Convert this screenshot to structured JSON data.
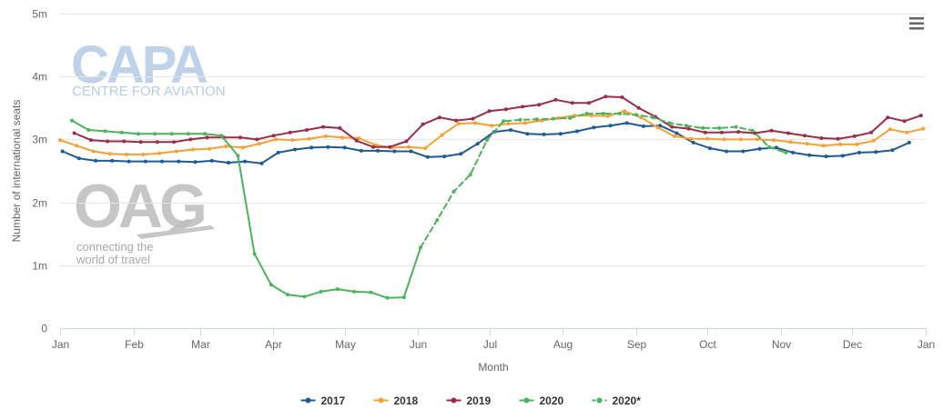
{
  "watermarks": {
    "capa_main": "CAPA",
    "capa_sub": "CENTRE FOR AVIATION",
    "oag_main": "OAG",
    "oag_tag1": "connecting the",
    "oag_tag2": "world of travel"
  },
  "icons": {
    "menu": "hamburger-menu-icon"
  },
  "chart_data": {
    "type": "line",
    "title": "",
    "xlabel": "Month",
    "ylabel": "Number of international seats",
    "y_ticks": [
      {
        "value": 0,
        "label": "0"
      },
      {
        "value": 1000000,
        "label": "1m"
      },
      {
        "value": 2000000,
        "label": "2m"
      },
      {
        "value": 3000000,
        "label": "3m"
      },
      {
        "value": 4000000,
        "label": "4m"
      },
      {
        "value": 5000000,
        "label": "5m"
      }
    ],
    "x_ticks": [
      {
        "value": 1,
        "label": "Jan"
      },
      {
        "value": 32,
        "label": "Feb"
      },
      {
        "value": 60,
        "label": "Mar"
      },
      {
        "value": 91,
        "label": "Apr"
      },
      {
        "value": 121,
        "label": "May"
      },
      {
        "value": 152,
        "label": "Jun"
      },
      {
        "value": 182,
        "label": "Jul"
      },
      {
        "value": 213,
        "label": "Aug"
      },
      {
        "value": 244,
        "label": "Sep"
      },
      {
        "value": 274,
        "label": "Oct"
      },
      {
        "value": 305,
        "label": "Nov"
      },
      {
        "value": 335,
        "label": "Dec"
      },
      {
        "value": 366,
        "label": "Jan"
      }
    ],
    "xlim": [
      1,
      366
    ],
    "ylim": [
      0,
      5000000
    ],
    "grid": "horizontal",
    "legend_position": "bottom-center",
    "series": [
      {
        "name": "2017",
        "color": "#1f5a96",
        "dashed": false,
        "x": [
          2,
          9,
          16,
          23,
          30,
          37,
          44,
          51,
          58,
          65,
          72,
          79,
          86,
          93,
          100,
          107,
          114,
          121,
          128,
          135,
          142,
          149,
          156,
          163,
          170,
          177,
          184,
          191,
          198,
          205,
          212,
          219,
          226,
          233,
          240,
          247,
          254,
          261,
          268,
          275,
          282,
          289,
          296,
          303,
          310,
          317,
          324,
          331,
          338,
          345,
          352,
          359
        ],
        "y": [
          2810000,
          2700000,
          2660000,
          2660000,
          2650000,
          2650000,
          2650000,
          2650000,
          2640000,
          2660000,
          2630000,
          2650000,
          2620000,
          2790000,
          2840000,
          2870000,
          2880000,
          2870000,
          2820000,
          2820000,
          2810000,
          2810000,
          2720000,
          2730000,
          2770000,
          2930000,
          3120000,
          3150000,
          3090000,
          3080000,
          3090000,
          3130000,
          3190000,
          3220000,
          3260000,
          3210000,
          3220000,
          3100000,
          2950000,
          2860000,
          2810000,
          2810000,
          2850000,
          2870000,
          2790000,
          2750000,
          2730000,
          2740000,
          2790000,
          2800000,
          2830000,
          2950000
        ]
      },
      {
        "name": "2018",
        "color": "#f7a035",
        "dashed": false,
        "x": [
          1,
          8,
          15,
          22,
          29,
          36,
          43,
          50,
          57,
          64,
          71,
          78,
          85,
          92,
          99,
          106,
          113,
          120,
          127,
          134,
          141,
          148,
          155,
          162,
          169,
          176,
          183,
          190,
          197,
          204,
          211,
          218,
          225,
          232,
          239,
          246,
          253,
          260,
          267,
          274,
          281,
          288,
          295,
          302,
          309,
          316,
          323,
          330,
          337,
          344,
          351,
          358,
          365
        ],
        "y": [
          2990000,
          2900000,
          2810000,
          2770000,
          2760000,
          2760000,
          2780000,
          2810000,
          2840000,
          2850000,
          2890000,
          2870000,
          2930000,
          3000000,
          2990000,
          3010000,
          3050000,
          3030000,
          3020000,
          2910000,
          2870000,
          2880000,
          2860000,
          3070000,
          3250000,
          3260000,
          3220000,
          3250000,
          3260000,
          3300000,
          3340000,
          3380000,
          3380000,
          3370000,
          3450000,
          3350000,
          3190000,
          3050000,
          3010000,
          3010000,
          3000000,
          3000000,
          3000000,
          2990000,
          2960000,
          2930000,
          2900000,
          2920000,
          2920000,
          2980000,
          3160000,
          3110000,
          3170000
        ]
      },
      {
        "name": "2019",
        "color": "#9b2d48",
        "dashed": false,
        "x": [
          7,
          14,
          21,
          28,
          35,
          42,
          49,
          56,
          63,
          70,
          77,
          84,
          91,
          98,
          105,
          112,
          119,
          126,
          133,
          140,
          147,
          154,
          161,
          168,
          175,
          182,
          189,
          196,
          203,
          210,
          217,
          224,
          231,
          238,
          245,
          252,
          259,
          266,
          273,
          280,
          287,
          294,
          301,
          308,
          315,
          322,
          329,
          336,
          343,
          350,
          357,
          364
        ],
        "y": [
          3100000,
          2990000,
          2970000,
          2970000,
          2960000,
          2960000,
          2960000,
          3000000,
          3030000,
          3030000,
          3030000,
          3000000,
          3060000,
          3110000,
          3150000,
          3200000,
          3180000,
          2980000,
          2880000,
          2880000,
          2970000,
          3240000,
          3350000,
          3300000,
          3330000,
          3450000,
          3480000,
          3520000,
          3550000,
          3630000,
          3580000,
          3580000,
          3680000,
          3670000,
          3500000,
          3360000,
          3200000,
          3170000,
          3110000,
          3110000,
          3120000,
          3100000,
          3140000,
          3100000,
          3060000,
          3020000,
          3010000,
          3050000,
          3110000,
          3350000,
          3290000,
          3380000
        ]
      },
      {
        "name": "2020",
        "color": "#4db35a",
        "dashed": false,
        "x": [
          6,
          13,
          20,
          27,
          34,
          41,
          48,
          55,
          62,
          69,
          76,
          83,
          90,
          97,
          104,
          111,
          118,
          125,
          132,
          139,
          146,
          153
        ],
        "y": [
          3300000,
          3150000,
          3130000,
          3110000,
          3090000,
          3090000,
          3090000,
          3090000,
          3090000,
          3060000,
          2740000,
          1180000,
          690000,
          530000,
          500000,
          580000,
          620000,
          580000,
          570000,
          480000,
          490000,
          1280000
        ]
      },
      {
        "name": "2020*",
        "color": "#4db35a",
        "dashed": true,
        "x": [
          153,
          160,
          167,
          174,
          181,
          188,
          195,
          202,
          209,
          216,
          223,
          230,
          237,
          244,
          251,
          258,
          265,
          272,
          279,
          286,
          293,
          300,
          307
        ],
        "y": [
          1280000,
          1720000,
          2170000,
          2440000,
          2990000,
          3290000,
          3310000,
          3320000,
          3330000,
          3340000,
          3410000,
          3410000,
          3410000,
          3390000,
          3350000,
          3260000,
          3220000,
          3180000,
          3180000,
          3200000,
          3140000,
          2880000,
          2790000
        ]
      }
    ]
  }
}
